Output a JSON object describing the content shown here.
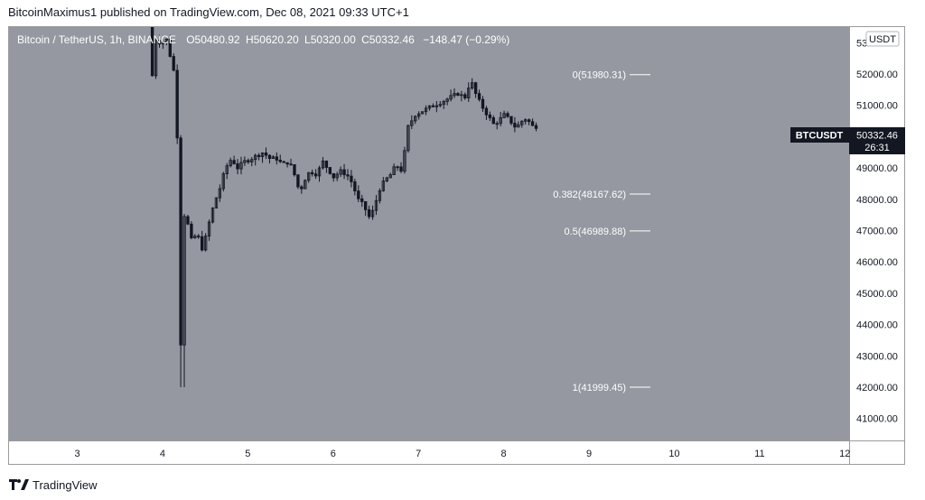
{
  "header": {
    "publisher_line": "BitcoinMaximus1 published on TradingView.com, Dec 08, 2021 09:33 UTC+1"
  },
  "legend": {
    "symbol": "Bitcoin / TetherUS, 1h, BINANCE",
    "open_label": "O",
    "open": "50480.92",
    "high_label": "H",
    "high": "50620.20",
    "low_label": "L",
    "low": "50320.00",
    "close_label": "C",
    "close": "50332.46",
    "change": "−148.47 (−0.29%)"
  },
  "footer": {
    "brand": "TradingView",
    "logo_icon": "tradingview-logo-icon"
  },
  "colors": {
    "plot_bg": "#9598a1",
    "candle": "#131722",
    "fib_line": "#ffffff",
    "price_tag": "#131722"
  },
  "chart_data": {
    "type": "candlestick",
    "symbol": "BTCUSDT",
    "currency_label": "USDT",
    "last_price": "50332.46",
    "countdown": "26:31",
    "y_axis": {
      "ylim": [
        40300,
        53500
      ],
      "ticks": [
        "41000.00",
        "42000.00",
        "43000.00",
        "44000.00",
        "45000.00",
        "46000.00",
        "47000.00",
        "48000.00",
        "49000.00",
        "50000.00",
        "51000.00",
        "52000.00",
        "53000.00"
      ]
    },
    "x_axis": {
      "xlim": [
        2.2,
        12.05
      ],
      "ticks": [
        "3",
        "4",
        "5",
        "6",
        "7",
        "8",
        "9",
        "10",
        "11",
        "12"
      ]
    },
    "fib_levels": [
      {
        "label": "0(51980.31)",
        "value": 51980.31
      },
      {
        "label": "0.382(48167.62)",
        "value": 48167.62
      },
      {
        "label": "0.5(46989.88)",
        "value": 46989.88
      },
      {
        "label": "1(41999.45)",
        "value": 41999.45
      }
    ],
    "price_path": [
      [
        3.88,
        53700
      ],
      [
        3.92,
        51900
      ],
      [
        3.97,
        53300
      ],
      [
        4.02,
        52900
      ],
      [
        4.08,
        53200
      ],
      [
        4.12,
        52700
      ],
      [
        4.17,
        52200
      ],
      [
        4.2,
        50600
      ],
      [
        4.23,
        49300
      ],
      [
        4.25,
        42000
      ],
      [
        4.27,
        47600
      ],
      [
        4.32,
        47400
      ],
      [
        4.38,
        46700
      ],
      [
        4.45,
        46900
      ],
      [
        4.5,
        46400
      ],
      [
        4.55,
        46800
      ],
      [
        4.6,
        47400
      ],
      [
        4.65,
        47900
      ],
      [
        4.72,
        48400
      ],
      [
        4.78,
        49000
      ],
      [
        4.85,
        49300
      ],
      [
        4.92,
        49000
      ],
      [
        5.0,
        49200
      ],
      [
        5.08,
        49300
      ],
      [
        5.15,
        49400
      ],
      [
        5.22,
        49500
      ],
      [
        5.3,
        49300
      ],
      [
        5.38,
        49300
      ],
      [
        5.45,
        49100
      ],
      [
        5.5,
        49200
      ],
      [
        5.55,
        49050
      ],
      [
        5.6,
        48700
      ],
      [
        5.65,
        48200
      ],
      [
        5.7,
        48600
      ],
      [
        5.77,
        48900
      ],
      [
        5.85,
        48800
      ],
      [
        5.92,
        49200
      ],
      [
        6.0,
        48900
      ],
      [
        6.05,
        48700
      ],
      [
        6.12,
        48900
      ],
      [
        6.2,
        48800
      ],
      [
        6.27,
        48500
      ],
      [
        6.33,
        48000
      ],
      [
        6.4,
        47800
      ],
      [
        6.47,
        47400
      ],
      [
        6.52,
        47700
      ],
      [
        6.58,
        48300
      ],
      [
        6.65,
        48600
      ],
      [
        6.72,
        48800
      ],
      [
        6.78,
        49100
      ],
      [
        6.85,
        48900
      ],
      [
        6.92,
        50300
      ],
      [
        7.0,
        50700
      ],
      [
        7.07,
        50800
      ],
      [
        7.15,
        50900
      ],
      [
        7.22,
        51000
      ],
      [
        7.3,
        51100
      ],
      [
        7.38,
        51200
      ],
      [
        7.45,
        51300
      ],
      [
        7.52,
        51400
      ],
      [
        7.58,
        51200
      ],
      [
        7.63,
        51600
      ],
      [
        7.68,
        51700
      ],
      [
        7.72,
        51300
      ],
      [
        7.78,
        51000
      ],
      [
        7.85,
        50700
      ],
      [
        7.92,
        50400
      ],
      [
        7.98,
        50500
      ],
      [
        8.05,
        50700
      ],
      [
        8.12,
        50500
      ],
      [
        8.18,
        50300
      ],
      [
        8.23,
        50400
      ],
      [
        8.28,
        50600
      ],
      [
        8.33,
        50500
      ],
      [
        8.38,
        50332.46
      ]
    ]
  }
}
